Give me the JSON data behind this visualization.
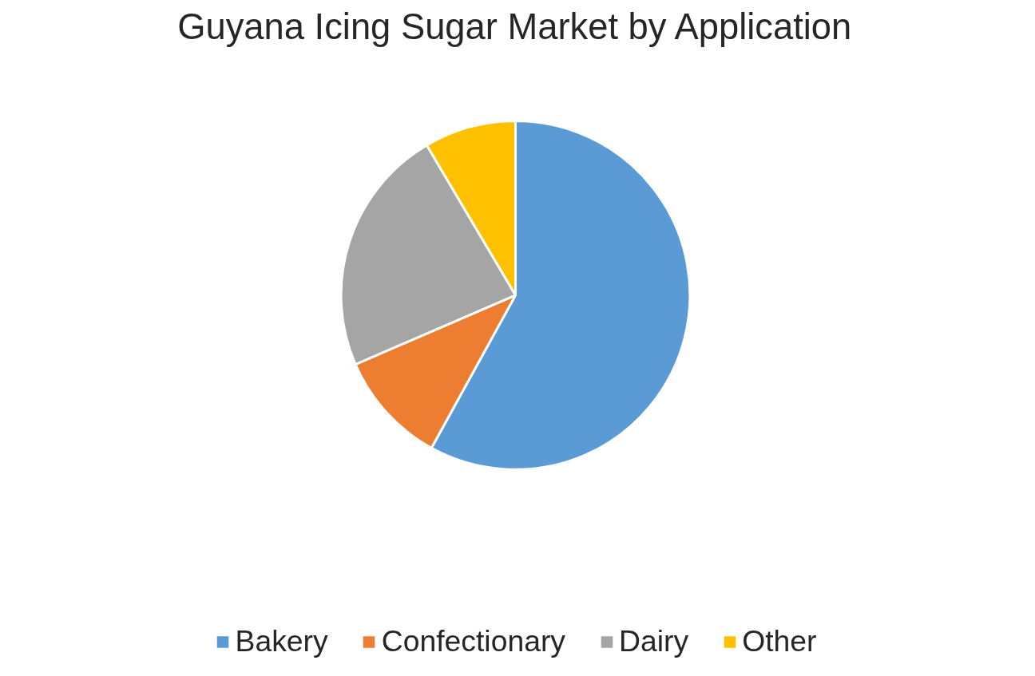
{
  "chart_data": {
    "type": "pie",
    "title": "Guyana Icing Sugar Market by Application",
    "categories": [
      "Bakery",
      "Confectionary",
      "Dairy",
      "Other"
    ],
    "values": [
      58,
      10.5,
      23,
      8.5
    ],
    "colors": [
      "#5b9bd5",
      "#ed7d31",
      "#a5a5a5",
      "#ffc000"
    ],
    "legend": "bottom"
  }
}
